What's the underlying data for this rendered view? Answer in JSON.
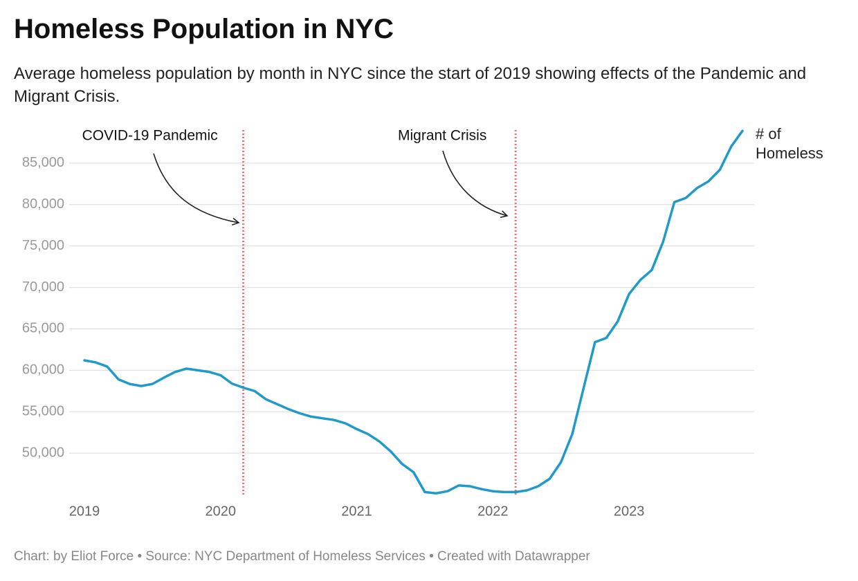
{
  "chart_data": {
    "type": "line",
    "title": "Homeless Population in NYC",
    "subtitle": "Average homeless population by month in NYC since the start of 2019 showing effects of the Pandemic and Migrant Crisis.",
    "footer": "Chart: by Eliot Force • Source: NYC Department of Homeless Services • Created with Datawrapper",
    "x": [
      2019,
      2019.083,
      2019.167,
      2019.25,
      2019.333,
      2019.417,
      2019.5,
      2019.583,
      2019.667,
      2019.75,
      2019.833,
      2019.917,
      2020,
      2020.083,
      2020.167,
      2020.25,
      2020.333,
      2020.417,
      2020.5,
      2020.583,
      2020.667,
      2020.75,
      2020.833,
      2020.917,
      2021,
      2021.083,
      2021.167,
      2021.25,
      2021.333,
      2021.417,
      2021.5,
      2021.583,
      2021.667,
      2021.75,
      2021.833,
      2021.917,
      2022,
      2022.083,
      2022.167,
      2022.25,
      2022.333,
      2022.417,
      2022.5,
      2022.583,
      2022.667,
      2022.75,
      2022.833,
      2022.917,
      2023,
      2023.083,
      2023.167,
      2023.25,
      2023.333,
      2023.417,
      2023.5,
      2023.583,
      2023.667,
      2023.75,
      2023.833
    ],
    "series": [
      {
        "name": "# of Homeless",
        "color": "#1f9ac9",
        "values": [
          61200,
          60950,
          60450,
          58900,
          58350,
          58100,
          58350,
          59100,
          59800,
          60200,
          60000,
          59800,
          59400,
          58400,
          57900,
          57500,
          56500,
          55900,
          55300,
          54800,
          54400,
          54200,
          54000,
          53600,
          52900,
          52300,
          51400,
          50200,
          48700,
          47700,
          45300,
          45150,
          45400,
          46100,
          46000,
          45650,
          45400,
          45300,
          45300,
          45500,
          46000,
          46900,
          48900,
          52300,
          57900,
          63400,
          63900,
          65900,
          69200,
          70900,
          72100,
          75500,
          80300,
          80800,
          82000,
          82800,
          84200,
          87000,
          88900
        ]
      }
    ],
    "annotations": [
      {
        "text": "COVID-19 Pandemic",
        "x": 2020.167
      },
      {
        "text": "Migrant Crisis",
        "x": 2022.167
      }
    ],
    "xlim": [
      2019,
      2023.833
    ],
    "xticks": [
      2019,
      2020,
      2021,
      2022,
      2023
    ],
    "ylim": [
      45000,
      89000
    ],
    "yticks": [
      {
        "value": 50000,
        "label": "50,000"
      },
      {
        "value": 55000,
        "label": "55,000"
      },
      {
        "value": 60000,
        "label": "60,000"
      },
      {
        "value": 65000,
        "label": "65,000"
      },
      {
        "value": 70000,
        "label": "70,000"
      },
      {
        "value": 75000,
        "label": "75,000"
      },
      {
        "value": 80000,
        "label": "80,000"
      },
      {
        "value": 85000,
        "label": "85,000"
      }
    ],
    "grid": true
  }
}
